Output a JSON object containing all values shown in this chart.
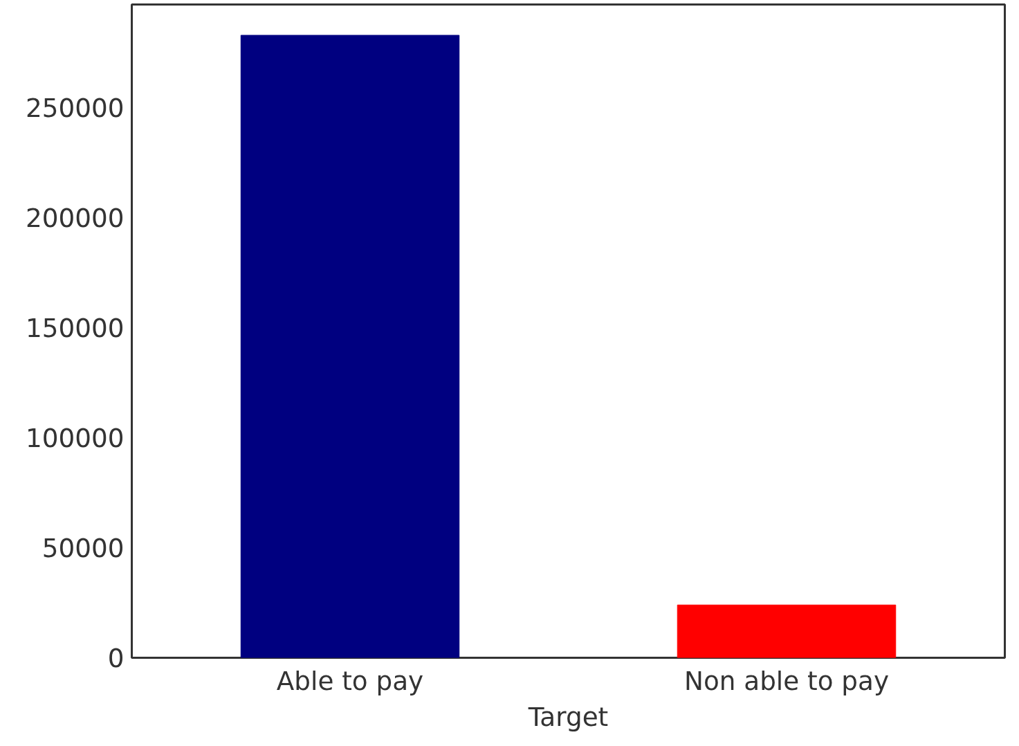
{
  "chart_data": {
    "type": "bar",
    "xlabel": "Target",
    "categories": [
      "Able to pay",
      "Non able to pay"
    ],
    "values": [
      283000,
      24000
    ],
    "colors": [
      "#000080",
      "#ff0000"
    ],
    "ylim": [
      0,
      297000
    ],
    "yticks": [
      0,
      50000,
      100000,
      150000,
      200000,
      250000
    ],
    "grid": false
  }
}
